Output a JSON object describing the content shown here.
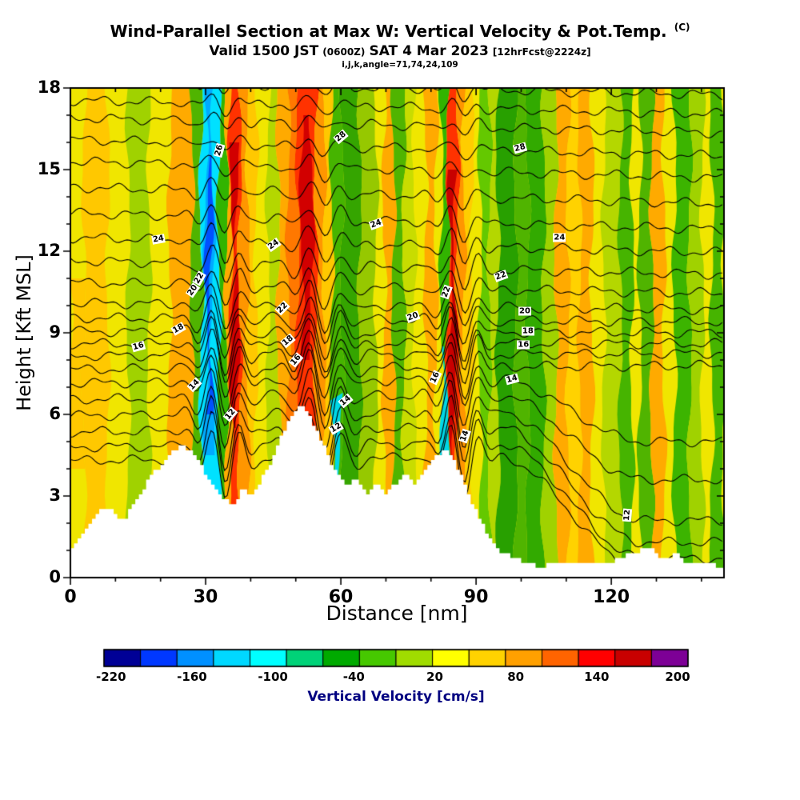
{
  "header": {
    "title": "Wind-Parallel Section at Max W: Vertical Velocity & Pot.Temp.",
    "title_unit": "(C)",
    "valid_prefix": "Valid 1500 JST",
    "valid_utc": "(0600Z)",
    "valid_date": "SAT 4 Mar 2023",
    "forecast_tag": "[12hrFcst@2224z]",
    "grid_info": "i,j,k,angle=71,74,24,109"
  },
  "chart_data": {
    "type": "heatmap",
    "title": "Wind-Parallel Section at Max W: Vertical Velocity & Pot.Temp. (C)",
    "xlabel": "Distance [nm]",
    "ylabel": "Height [Kft MSL]",
    "xlim": [
      0,
      145
    ],
    "ylim": [
      0,
      18
    ],
    "xticks": [
      0,
      30,
      60,
      90,
      120
    ],
    "x_minor_step": 10,
    "yticks": [
      0,
      3,
      6,
      9,
      12,
      15,
      18
    ],
    "y_minor_step": 1,
    "shaded_field": "Vertical Velocity [cm/s]",
    "contour_field": "Potential Temperature [C]",
    "contour_interval": 1,
    "contour_label_values": [
      12,
      14,
      16,
      18,
      20,
      22,
      24,
      26,
      28
    ],
    "base_color": "#f0e600",
    "grid": false,
    "contour_lines": [
      {
        "v": 30,
        "hL": 18.25,
        "hR": 17.75
      },
      {
        "v": 29,
        "hL": 17.55,
        "hR": 17.05
      },
      {
        "v": 28,
        "hL": 16.9,
        "hR": 16.35
      },
      {
        "v": 27,
        "hL": 16.1,
        "hR": 15.5
      },
      {
        "v": 26,
        "hL": 15.3,
        "hR": 14.7
      },
      {
        "v": 25,
        "hL": 14.35,
        "hR": 13.75
      },
      {
        "v": 24,
        "hL": 13.4,
        "hR": 12.8
      },
      {
        "v": 23,
        "hL": 12.5,
        "hR": 11.95
      },
      {
        "v": 22,
        "hL": 11.65,
        "hR": 11.15
      },
      {
        "v": 21,
        "hL": 10.85,
        "hR": 10.45
      },
      {
        "v": 20,
        "hL": 10.1,
        "hR": 9.85
      },
      {
        "v": 19,
        "hL": 9.55,
        "hR": 9.4
      },
      {
        "v": 18,
        "hL": 9.05,
        "hR": 9.0
      },
      {
        "v": 17,
        "hL": 8.6,
        "hR": 8.6
      },
      {
        "v": 16,
        "hL": 8.15,
        "hR": 8.25
      },
      {
        "v": 15,
        "hL": 7.65,
        "hR": 7.8
      },
      {
        "v": 14,
        "hL": 7.15,
        "hR": 7.35,
        "hF": 5.0
      },
      {
        "v": 13,
        "hL": 6.55,
        "hR": 6.8,
        "hF": 3.6
      },
      {
        "v": 12,
        "hL": 5.95,
        "hR": 6.2,
        "hF": 2.1
      },
      {
        "v": 11,
        "hL": 5.35,
        "hR": 5.6,
        "hF": 1.3
      },
      {
        "v": 10,
        "hL": 4.8,
        "hR": 5.0,
        "hF": 0.7
      },
      {
        "v": 9,
        "hL": 4.3,
        "hR": 4.5,
        "hF": 0.3
      }
    ],
    "contour_labels": [
      {
        "v": 26,
        "x": 33,
        "y": 15.7,
        "r": -75
      },
      {
        "v": 28,
        "x": 60,
        "y": 16.2,
        "r": -40
      },
      {
        "v": 28,
        "x": 99.7,
        "y": 15.8,
        "r": -15
      },
      {
        "v": 24,
        "x": 19.5,
        "y": 12.45,
        "r": -10
      },
      {
        "v": 24,
        "x": 45,
        "y": 12.25,
        "r": -35
      },
      {
        "v": 24,
        "x": 67.8,
        "y": 13.0,
        "r": -20
      },
      {
        "v": 24,
        "x": 108.5,
        "y": 12.5,
        "r": 0
      },
      {
        "v": 22,
        "x": 28.5,
        "y": 11.0,
        "r": -60
      },
      {
        "v": 22,
        "x": 47,
        "y": 9.9,
        "r": -45
      },
      {
        "v": 22,
        "x": 83.5,
        "y": 10.5,
        "r": -70
      },
      {
        "v": 22,
        "x": 95.5,
        "y": 11.1,
        "r": -20
      },
      {
        "v": 20,
        "x": 27.2,
        "y": 10.55,
        "r": -55
      },
      {
        "v": 20,
        "x": 76,
        "y": 9.6,
        "r": -20
      },
      {
        "v": 20,
        "x": 100.8,
        "y": 9.8,
        "r": 0
      },
      {
        "v": 18,
        "x": 24,
        "y": 9.15,
        "r": -30
      },
      {
        "v": 18,
        "x": 48.3,
        "y": 8.7,
        "r": -40
      },
      {
        "v": 18,
        "x": 101.5,
        "y": 9.05,
        "r": 0
      },
      {
        "v": 16,
        "x": 15,
        "y": 8.5,
        "r": -15
      },
      {
        "v": 16,
        "x": 50,
        "y": 8.0,
        "r": -50
      },
      {
        "v": 16,
        "x": 81,
        "y": 7.35,
        "r": -65
      },
      {
        "v": 16,
        "x": 100.5,
        "y": 8.55,
        "r": 0
      },
      {
        "v": 14,
        "x": 27.5,
        "y": 7.1,
        "r": -45
      },
      {
        "v": 14,
        "x": 61,
        "y": 6.5,
        "r": -40
      },
      {
        "v": 14,
        "x": 87.5,
        "y": 5.2,
        "r": -70
      },
      {
        "v": 14,
        "x": 98,
        "y": 7.3,
        "r": -15
      },
      {
        "v": 12,
        "x": 35.5,
        "y": 6.0,
        "r": -50
      },
      {
        "v": 12,
        "x": 59,
        "y": 5.5,
        "r": -30
      },
      {
        "v": 12,
        "x": 123.5,
        "y": 2.3,
        "r": -85
      }
    ],
    "velocity_bands": [
      {
        "x0": 0,
        "x1": 3,
        "y0": 4,
        "y1": 11,
        "c": "#ffc800"
      },
      {
        "x0": 3,
        "x1": 8.3,
        "c": "#ffc800"
      },
      {
        "x0": 12.8,
        "x1": 17.5,
        "c": "#a0d200"
      },
      {
        "x0": 22,
        "x1": 27,
        "c": "#ffaa00"
      },
      {
        "x0": 27,
        "x1": 29,
        "c": "#50b400"
      },
      {
        "x0": 29,
        "x1": 33,
        "c": "#00e1ff"
      },
      {
        "x0": 30,
        "x1": 31.6,
        "y0": 4.5,
        "y1": 18,
        "c": "#00aaff"
      },
      {
        "x0": 30.3,
        "x1": 31.2,
        "y0": 6,
        "y1": 15.5,
        "c": "#0050ff"
      },
      {
        "x0": 33,
        "x1": 34.6,
        "c": "#32b400"
      },
      {
        "x0": 34.6,
        "x1": 35.5,
        "c": "#ffaa00"
      },
      {
        "x0": 35.5,
        "x1": 37.6,
        "c": "#ff3200"
      },
      {
        "x0": 35.9,
        "x1": 37.1,
        "y0": 5.5,
        "y1": 16,
        "c": "#d20000"
      },
      {
        "x0": 37.6,
        "x1": 39.4,
        "c": "#ff9600"
      },
      {
        "x0": 39.4,
        "x1": 41.2,
        "c": "#ffc800"
      },
      {
        "x0": 43.8,
        "x1": 46.1,
        "c": "#b4d700"
      },
      {
        "x0": 46.1,
        "x1": 48.3,
        "c": "#ffaa00"
      },
      {
        "x0": 48.3,
        "x1": 50.4,
        "c": "#ff7800"
      },
      {
        "x0": 50.4,
        "x1": 54.5,
        "c": "#ff3200"
      },
      {
        "x0": 51.3,
        "x1": 53.6,
        "y0": 8,
        "y1": 17,
        "c": "#d20000"
      },
      {
        "x0": 54.5,
        "x1": 56.3,
        "c": "#ff9600"
      },
      {
        "x0": 56.3,
        "x1": 58,
        "c": "#ffc800"
      },
      {
        "x0": 58,
        "x1": 60.3,
        "c": "#46b400"
      },
      {
        "x0": 58.3,
        "x1": 60,
        "y0": 2,
        "y1": 6.8,
        "c": "#00d7e6"
      },
      {
        "x0": 60.3,
        "x1": 64.2,
        "c": "#35a500"
      },
      {
        "x0": 64.2,
        "x1": 67.8,
        "c": "#96c800"
      },
      {
        "x0": 69.6,
        "x1": 71.7,
        "c": "#ffaa00"
      },
      {
        "x0": 71.7,
        "x1": 74,
        "c": "#50b400"
      },
      {
        "x0": 74,
        "x1": 76.3,
        "c": "#c8dc00"
      },
      {
        "x0": 78.8,
        "x1": 81.1,
        "c": "#ffaa00"
      },
      {
        "x0": 82.3,
        "x1": 83.8,
        "c": "#32b400"
      },
      {
        "x0": 82.2,
        "x1": 83.6,
        "y0": 1.5,
        "y1": 8.5,
        "c": "#00d7e6"
      },
      {
        "x0": 83.8,
        "x1": 85.9,
        "c": "#ff3200"
      },
      {
        "x0": 84.2,
        "x1": 85.3,
        "y0": 2.5,
        "y1": 15,
        "c": "#c80000"
      },
      {
        "x0": 85.9,
        "x1": 87.3,
        "c": "#ff9600"
      },
      {
        "x0": 87.3,
        "x1": 89.1,
        "c": "#ffcd00"
      },
      {
        "x0": 90.9,
        "x1": 93,
        "c": "#64c800"
      },
      {
        "x0": 93,
        "x1": 94.8,
        "c": "#b4d700"
      },
      {
        "x0": 94.8,
        "x1": 98.8,
        "c": "#28a000"
      },
      {
        "x0": 98.8,
        "x1": 101.5,
        "c": "#50b400"
      },
      {
        "x0": 101.5,
        "x1": 105,
        "c": "#32aa00"
      },
      {
        "x0": 105,
        "x1": 107.7,
        "c": "#a0d200"
      },
      {
        "x0": 107.7,
        "x1": 110.4,
        "c": "#ffaa00"
      },
      {
        "x0": 110.4,
        "x1": 113,
        "c": "#ffd200"
      },
      {
        "x0": 113,
        "x1": 115.7,
        "c": "#ffaa00"
      },
      {
        "x0": 118.3,
        "x1": 122,
        "c": "#b4d700"
      },
      {
        "x0": 122,
        "x1": 124.6,
        "c": "#46b400"
      },
      {
        "x0": 126.3,
        "x1": 129,
        "c": "#50b400"
      },
      {
        "x0": 129,
        "x1": 131.7,
        "c": "#ffaa00"
      },
      {
        "x0": 134,
        "x1": 137.4,
        "c": "#3cb400"
      },
      {
        "x0": 137.4,
        "x1": 140.2,
        "c": "#a0d200"
      },
      {
        "x0": 142.3,
        "x1": 145,
        "c": "#46b400"
      }
    ],
    "terrain_profile_kft": [
      [
        0,
        1.1
      ],
      [
        1,
        1.3
      ],
      [
        2,
        1.5
      ],
      [
        3,
        1.8
      ],
      [
        4,
        2.0
      ],
      [
        5,
        2.2
      ],
      [
        6,
        2.4
      ],
      [
        7,
        2.5
      ],
      [
        8,
        2.6
      ],
      [
        9,
        2.5
      ],
      [
        10,
        2.3
      ],
      [
        11,
        2.1
      ],
      [
        12,
        2.2
      ],
      [
        13,
        2.5
      ],
      [
        14,
        2.8
      ],
      [
        15,
        3.1
      ],
      [
        16,
        3.3
      ],
      [
        17,
        3.6
      ],
      [
        18,
        3.8
      ],
      [
        19,
        4.0
      ],
      [
        20,
        4.2
      ],
      [
        21,
        4.4
      ],
      [
        22,
        4.6
      ],
      [
        23,
        4.7
      ],
      [
        24,
        4.8
      ],
      [
        25,
        4.8
      ],
      [
        26,
        4.7
      ],
      [
        27,
        4.5
      ],
      [
        28,
        4.3
      ],
      [
        29,
        4.0
      ],
      [
        30,
        3.7
      ],
      [
        31,
        3.4
      ],
      [
        32,
        3.2
      ],
      [
        33,
        3.0
      ],
      [
        34,
        2.9
      ],
      [
        35,
        2.8
      ],
      [
        36,
        2.7
      ],
      [
        37,
        3.0
      ],
      [
        38,
        3.3
      ],
      [
        39,
        3.1
      ],
      [
        40,
        3.0
      ],
      [
        41,
        3.3
      ],
      [
        42,
        3.6
      ],
      [
        43,
        3.9
      ],
      [
        44,
        4.2
      ],
      [
        45,
        4.6
      ],
      [
        46,
        5.0
      ],
      [
        47,
        5.4
      ],
      [
        48,
        5.7
      ],
      [
        49,
        6.0
      ],
      [
        50,
        6.2
      ],
      [
        51,
        6.3
      ],
      [
        52,
        6.1
      ],
      [
        53,
        5.8
      ],
      [
        54,
        5.5
      ],
      [
        55,
        5.2
      ],
      [
        56,
        4.8
      ],
      [
        57,
        4.4
      ],
      [
        58,
        4.1
      ],
      [
        59,
        3.8
      ],
      [
        60,
        3.6
      ],
      [
        61,
        3.4
      ],
      [
        62,
        3.5
      ],
      [
        63,
        3.7
      ],
      [
        64,
        3.4
      ],
      [
        65,
        3.2
      ],
      [
        66,
        3.1
      ],
      [
        67,
        3.3
      ],
      [
        68,
        3.5
      ],
      [
        69,
        3.2
      ],
      [
        70,
        3.1
      ],
      [
        71,
        3.3
      ],
      [
        72,
        3.5
      ],
      [
        73,
        3.7
      ],
      [
        74,
        3.8
      ],
      [
        75,
        3.6
      ],
      [
        76,
        3.4
      ],
      [
        77,
        3.6
      ],
      [
        78,
        3.9
      ],
      [
        79,
        4.1
      ],
      [
        80,
        4.3
      ],
      [
        81,
        4.5
      ],
      [
        82,
        4.6
      ],
      [
        83,
        4.7
      ],
      [
        84,
        4.5
      ],
      [
        85,
        4.2
      ],
      [
        86,
        3.9
      ],
      [
        87,
        3.5
      ],
      [
        88,
        3.1
      ],
      [
        89,
        2.7
      ],
      [
        90,
        2.3
      ],
      [
        91,
        2.0
      ],
      [
        92,
        1.7
      ],
      [
        93,
        1.4
      ],
      [
        94,
        1.2
      ],
      [
        95,
        1.0
      ],
      [
        96,
        0.9
      ],
      [
        97,
        0.8
      ],
      [
        98,
        0.7
      ],
      [
        100,
        0.6
      ],
      [
        102,
        0.5
      ],
      [
        104,
        0.4
      ],
      [
        106,
        0.5
      ],
      [
        108,
        0.6
      ],
      [
        110,
        0.5
      ],
      [
        112,
        0.6
      ],
      [
        114,
        0.5
      ],
      [
        116,
        0.6
      ],
      [
        118,
        0.5
      ],
      [
        120,
        0.6
      ],
      [
        122,
        0.7
      ],
      [
        124,
        0.9
      ],
      [
        126,
        1.0
      ],
      [
        128,
        1.1
      ],
      [
        129,
        1.0
      ],
      [
        130,
        0.8
      ],
      [
        132,
        0.7
      ],
      [
        134,
        0.9
      ],
      [
        135,
        0.8
      ],
      [
        136,
        0.6
      ],
      [
        138,
        0.5
      ],
      [
        140,
        0.6
      ],
      [
        142,
        0.5
      ],
      [
        144,
        0.4
      ],
      [
        145,
        0.4
      ]
    ],
    "colorbar": {
      "label": "Vertical Velocity [cm/s]",
      "tick_labels": [
        "-220",
        "-160",
        "-100",
        "-40",
        "20",
        "80",
        "140",
        "200"
      ],
      "colors": [
        "#000096",
        "#0038ff",
        "#0090ff",
        "#00d8ff",
        "#00ffff",
        "#00d278",
        "#00aa00",
        "#46c800",
        "#a0dc00",
        "#ffff00",
        "#ffd200",
        "#ffa000",
        "#ff6400",
        "#ff0000",
        "#c80000",
        "#7d0096"
      ]
    }
  }
}
